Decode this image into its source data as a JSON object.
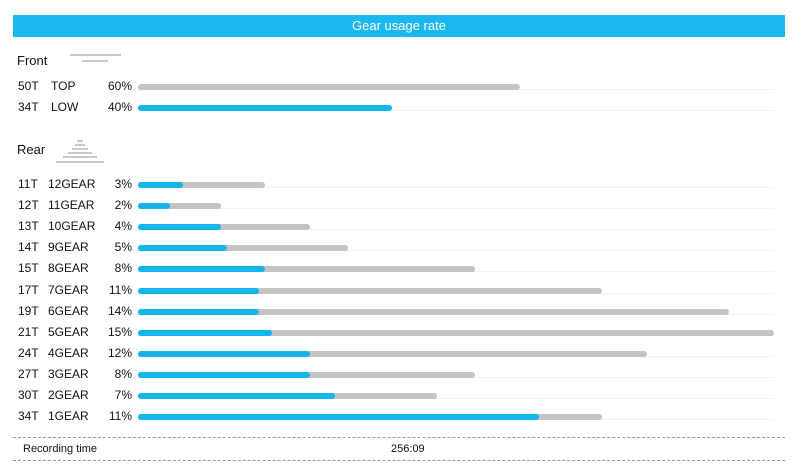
{
  "header": {
    "title": "Gear usage rate"
  },
  "front": {
    "title": "Front",
    "icon": "front-chainrings-icon",
    "rows": [
      {
        "teeth": "50T",
        "gear": "TOP",
        "percent": "60%",
        "usage": 0.6,
        "max_share": 0
      },
      {
        "teeth": "34T",
        "gear": "LOW",
        "percent": "40%",
        "usage": 0.4,
        "max_share": 0.4
      }
    ]
  },
  "rear": {
    "title": "Rear",
    "icon": "rear-cassette-icon",
    "rows": [
      {
        "teeth": "11T",
        "gear": "12GEAR",
        "percent": "3%",
        "usage": 0.2,
        "share": 0.07
      },
      {
        "teeth": "12T",
        "gear": "11GEAR",
        "percent": "2%",
        "usage": 0.13,
        "share": 0.05
      },
      {
        "teeth": "13T",
        "gear": "10GEAR",
        "percent": "4%",
        "usage": 0.27,
        "share": 0.13
      },
      {
        "teeth": "14T",
        "gear": "9GEAR",
        "percent": "5%",
        "usage": 0.33,
        "share": 0.14
      },
      {
        "teeth": "15T",
        "gear": "8GEAR",
        "percent": "8%",
        "usage": 0.53,
        "share": 0.2
      },
      {
        "teeth": "17T",
        "gear": "7GEAR",
        "percent": "11%",
        "usage": 0.73,
        "share": 0.19
      },
      {
        "teeth": "19T",
        "gear": "6GEAR",
        "percent": "14%",
        "usage": 0.93,
        "share": 0.19
      },
      {
        "teeth": "21T",
        "gear": "5GEAR",
        "percent": "15%",
        "usage": 1.0,
        "share": 0.21
      },
      {
        "teeth": "24T",
        "gear": "4GEAR",
        "percent": "12%",
        "usage": 0.8,
        "share": 0.27
      },
      {
        "teeth": "27T",
        "gear": "3GEAR",
        "percent": "8%",
        "usage": 0.53,
        "share": 0.27
      },
      {
        "teeth": "30T",
        "gear": "2GEAR",
        "percent": "7%",
        "usage": 0.47,
        "share": 0.31
      },
      {
        "teeth": "34T",
        "gear": "1GEAR",
        "percent": "11%",
        "usage": 0.73,
        "share": 0.63
      }
    ]
  },
  "colors": {
    "accent": "#1bb7ee",
    "bar_blue": "#14b4ec",
    "bar_gray": "#c4c4c4"
  },
  "footer": {
    "label": "Recording time",
    "value": "256:09"
  }
}
